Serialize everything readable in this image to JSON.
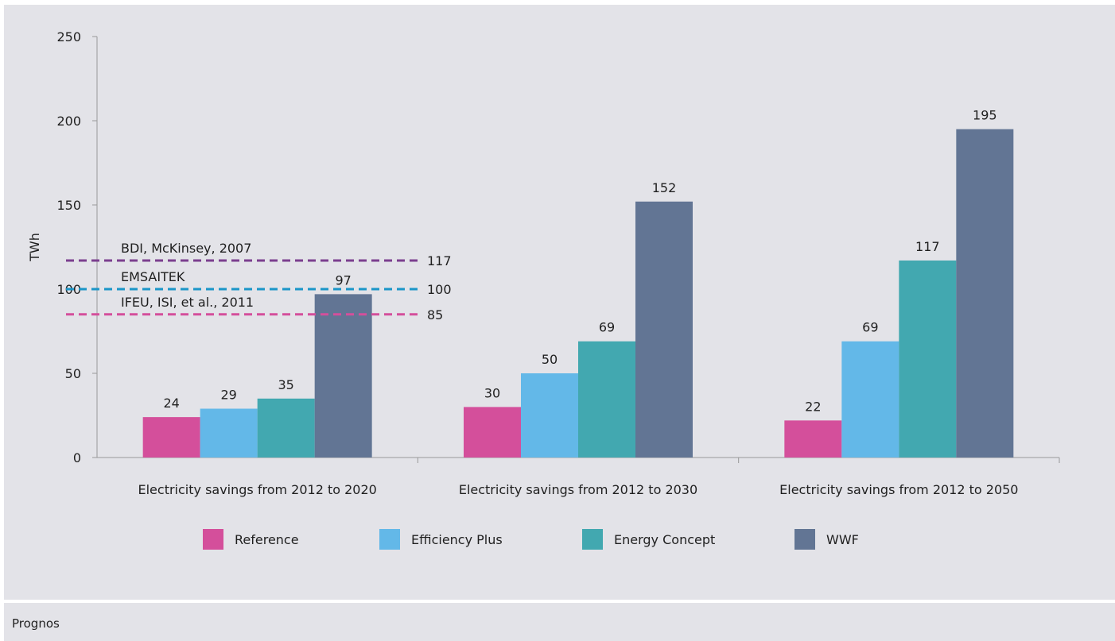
{
  "chart_data": {
    "type": "bar",
    "ylabel": "TWh",
    "ylim": [
      0,
      250
    ],
    "yticks": [
      0,
      50,
      100,
      150,
      200,
      250
    ],
    "categories": [
      "Electricity savings from 2012 to 2020",
      "Electricity savings from 2012 to 2030",
      "Electricity savings from 2012 to 2050"
    ],
    "series": [
      {
        "name": "Reference",
        "color": "#d44f9b",
        "values": [
          24,
          30,
          22
        ]
      },
      {
        "name": "Efficiency Plus",
        "color": "#63b8e8",
        "values": [
          29,
          50,
          69
        ]
      },
      {
        "name": "Energy Concept",
        "color": "#42a8b0",
        "values": [
          35,
          69,
          117
        ]
      },
      {
        "name": "WWF",
        "color": "#627594",
        "values": [
          97,
          152,
          195
        ]
      }
    ],
    "reference_lines": [
      {
        "label": "BDI, McKinsey, 2007",
        "value": 117,
        "value_label": "117",
        "color": "#7b3f8f"
      },
      {
        "label": "EMSAITEK",
        "value": 100,
        "value_label": "100",
        "color": "#1b96c8"
      },
      {
        "label": "IFEU, ISI, et al., 2011",
        "value": 85,
        "value_label": "85",
        "color": "#d44f9b"
      }
    ],
    "legend": {
      "position": "bottom"
    },
    "grid": false
  },
  "footer": {
    "source": "Prognos"
  }
}
